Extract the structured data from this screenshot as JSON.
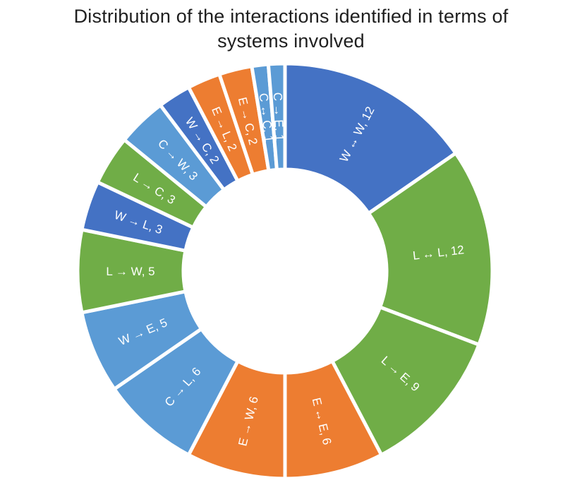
{
  "title": {
    "line1": "Distribution of the interactions identified in terms of",
    "line2": "systems involved"
  },
  "chart_data": {
    "type": "pie",
    "subtype": "donut",
    "title": "Distribution of the interactions identified in terms of systems involved",
    "total": 78,
    "start_angle_deg": 0,
    "direction": "clockwise",
    "hole_ratio": 0.49,
    "grid": "off",
    "legend": "none",
    "label_color": "#ffffff",
    "separator_color": "#ffffff",
    "palette": {
      "dark_blue": "#4472C4",
      "green": "#70AD47",
      "orange": "#ED7D31",
      "light_blue": "#5B9BD5"
    },
    "segments": [
      {
        "label": "W ↔ W, 12",
        "source": "W",
        "target": "W",
        "relation": "bidirectional",
        "value": 12,
        "color": "#4472C4"
      },
      {
        "label": "L ↔ L, 12",
        "source": "L",
        "target": "L",
        "relation": "bidirectional",
        "value": 12,
        "color": "#70AD47"
      },
      {
        "label": "L → E, 9",
        "source": "L",
        "target": "E",
        "relation": "directed",
        "value": 9,
        "color": "#70AD47"
      },
      {
        "label": "E ↔ E, 6",
        "source": "E",
        "target": "E",
        "relation": "bidirectional",
        "value": 6,
        "color": "#ED7D31"
      },
      {
        "label": "E → W, 6",
        "source": "E",
        "target": "W",
        "relation": "directed",
        "value": 6,
        "color": "#ED7D31"
      },
      {
        "label": "C → L, 6",
        "source": "C",
        "target": "L",
        "relation": "directed",
        "value": 6,
        "color": "#5B9BD5"
      },
      {
        "label": "W → E, 5",
        "source": "W",
        "target": "E",
        "relation": "directed",
        "value": 5,
        "color": "#5B9BD5"
      },
      {
        "label": "L → W, 5",
        "source": "L",
        "target": "W",
        "relation": "directed",
        "value": 5,
        "color": "#70AD47"
      },
      {
        "label": "W → L, 3",
        "source": "W",
        "target": "L",
        "relation": "directed",
        "value": 3,
        "color": "#4472C4"
      },
      {
        "label": "L → C, 3",
        "source": "L",
        "target": "C",
        "relation": "directed",
        "value": 3,
        "color": "#70AD47"
      },
      {
        "label": "C → W, 3",
        "source": "C",
        "target": "W",
        "relation": "directed",
        "value": 3,
        "color": "#5B9BD5"
      },
      {
        "label": "W → C, 2",
        "source": "W",
        "target": "C",
        "relation": "directed",
        "value": 2,
        "color": "#4472C4"
      },
      {
        "label": "E → L, 2",
        "source": "E",
        "target": "L",
        "relation": "directed",
        "value": 2,
        "color": "#ED7D31"
      },
      {
        "label": "E → C, 2",
        "source": "E",
        "target": "C",
        "relation": "directed",
        "value": 2,
        "color": "#ED7D31"
      },
      {
        "label": "C ↔ C, 1",
        "source": "C",
        "target": "C",
        "relation": "bidirectional",
        "value": 1,
        "color": "#5B9BD5"
      },
      {
        "label": "C → E, 1",
        "source": "C",
        "target": "E",
        "relation": "directed",
        "value": 1,
        "color": "#5B9BD5"
      }
    ]
  }
}
